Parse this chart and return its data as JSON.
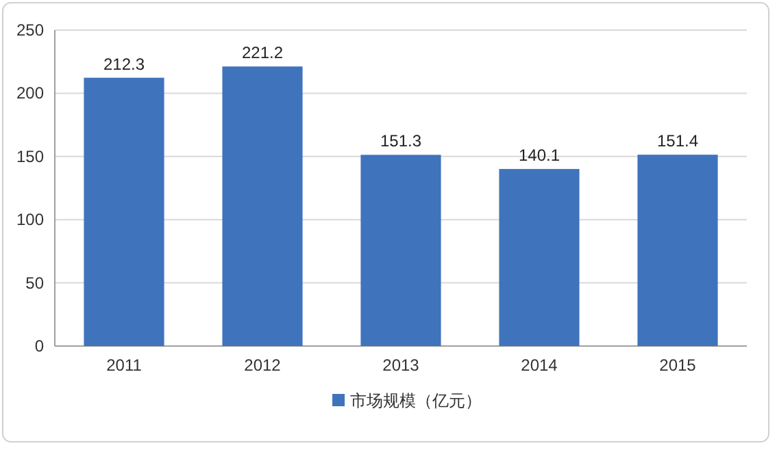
{
  "chart_data": {
    "type": "bar",
    "categories": [
      "2011",
      "2012",
      "2013",
      "2014",
      "2015"
    ],
    "series": [
      {
        "name": "市场规模（亿元）",
        "color": "#3f74bd",
        "values": [
          212.3,
          221.2,
          151.3,
          140.1,
          151.4
        ]
      }
    ],
    "ylim": [
      0,
      250
    ],
    "yticks": [
      0,
      50,
      100,
      150,
      200,
      250
    ],
    "grid": "y",
    "data_labels": true,
    "legend": "bottom"
  }
}
